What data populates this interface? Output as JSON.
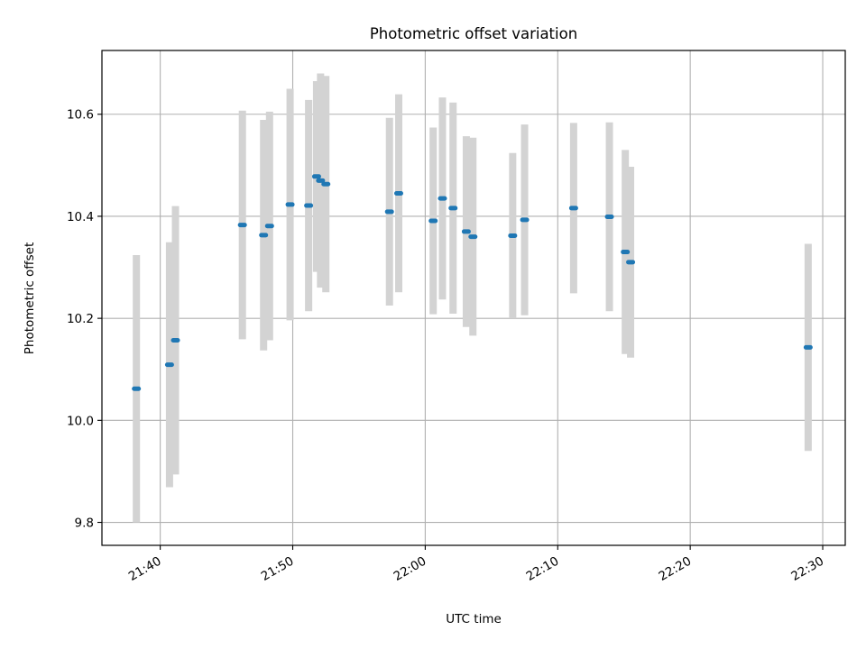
{
  "chart_data": {
    "type": "scatter",
    "title": "Photometric offset variation",
    "xlabel": "UTC time",
    "ylabel": "Photometric offset",
    "x_ticks": [
      "21:40",
      "21:50",
      "22:00",
      "22:10",
      "22:20",
      "22:30"
    ],
    "x_tick_minutes": [
      0,
      10,
      20,
      30,
      40,
      50
    ],
    "y_ticks": [
      "9.8",
      "10.0",
      "10.2",
      "10.4",
      "10.6"
    ],
    "y_tick_values": [
      9.8,
      10.0,
      10.2,
      10.4,
      10.6
    ],
    "xlim_minutes": [
      -4.4,
      51.7
    ],
    "ylim": [
      9.755,
      10.725
    ],
    "x_axis_origin": "21:40",
    "grid": true,
    "colors": {
      "points": "#1f77b4",
      "error_bars": "#d3d3d3",
      "grid": "#b0b0b0"
    },
    "points": [
      {
        "t": -1.8,
        "y": 10.062,
        "err": 0.262
      },
      {
        "t": 0.7,
        "y": 10.109,
        "err": 0.24
      },
      {
        "t": 1.15,
        "y": 10.157,
        "err": 0.263
      },
      {
        "t": 6.2,
        "y": 10.383,
        "err": 0.224
      },
      {
        "t": 7.8,
        "y": 10.363,
        "err": 0.226
      },
      {
        "t": 8.25,
        "y": 10.381,
        "err": 0.224
      },
      {
        "t": 9.8,
        "y": 10.423,
        "err": 0.227
      },
      {
        "t": 11.2,
        "y": 10.421,
        "err": 0.207
      },
      {
        "t": 11.8,
        "y": 10.478,
        "err": 0.187
      },
      {
        "t": 12.1,
        "y": 10.47,
        "err": 0.21
      },
      {
        "t": 12.5,
        "y": 10.463,
        "err": 0.212
      },
      {
        "t": 17.3,
        "y": 10.409,
        "err": 0.184
      },
      {
        "t": 18.0,
        "y": 10.445,
        "err": 0.194
      },
      {
        "t": 20.6,
        "y": 10.391,
        "err": 0.183
      },
      {
        "t": 21.3,
        "y": 10.435,
        "err": 0.198
      },
      {
        "t": 22.1,
        "y": 10.416,
        "err": 0.207
      },
      {
        "t": 23.1,
        "y": 10.37,
        "err": 0.187
      },
      {
        "t": 23.6,
        "y": 10.36,
        "err": 0.194
      },
      {
        "t": 26.6,
        "y": 10.362,
        "err": 0.162
      },
      {
        "t": 27.5,
        "y": 10.393,
        "err": 0.187
      },
      {
        "t": 31.2,
        "y": 10.416,
        "err": 0.167
      },
      {
        "t": 33.9,
        "y": 10.399,
        "err": 0.185
      },
      {
        "t": 35.1,
        "y": 10.33,
        "err": 0.2
      },
      {
        "t": 35.5,
        "y": 10.31,
        "err": 0.187
      },
      {
        "t": 48.9,
        "y": 10.143,
        "err": 0.203
      }
    ]
  }
}
